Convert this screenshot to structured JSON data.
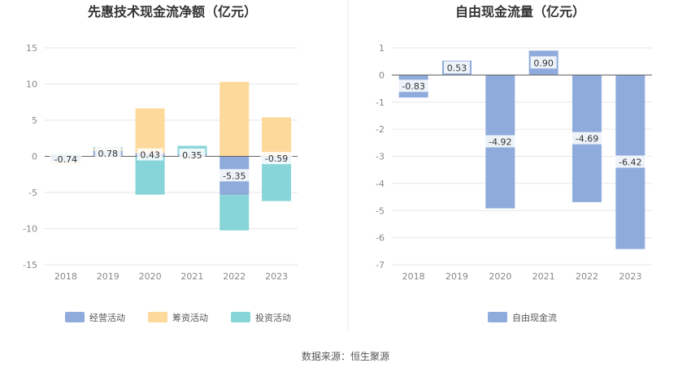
{
  "source_text": "数据来源：恒生聚源",
  "chart_data": [
    {
      "type": "bar",
      "stacked": true,
      "title": "先惠技术现金流净额（亿元）",
      "categories": [
        "2018",
        "2019",
        "2020",
        "2021",
        "2022",
        "2023"
      ],
      "ylim": [
        -15,
        15
      ],
      "yticks": [
        15,
        10,
        5,
        0,
        -5,
        -10,
        -15
      ],
      "grid": true,
      "legend_position": "bottom",
      "series": [
        {
          "name": "经营活动",
          "color": "#8eabdb",
          "values": [
            -0.74,
            0.78,
            0.43,
            0.35,
            -5.35,
            -0.59
          ]
        },
        {
          "name": "筹资活动",
          "color": "#fdd99b",
          "values": [
            -0.3,
            0.3,
            6.2,
            0.0,
            10.3,
            5.4
          ]
        },
        {
          "name": "投资活动",
          "color": "#88d5d9",
          "values": [
            0.3,
            0.2,
            -5.3,
            1.1,
            -4.9,
            -5.6
          ]
        }
      ],
      "data_labels": {
        "series": "经营活动",
        "text": [
          "-0.74",
          "0.78",
          "0.43",
          "0.35",
          "-5.35",
          "-0.59"
        ]
      }
    },
    {
      "type": "bar",
      "title": "自由现金流量（亿元）",
      "categories": [
        "2018",
        "2019",
        "2020",
        "2021",
        "2022",
        "2023"
      ],
      "ylim": [
        -7,
        1
      ],
      "yticks": [
        1,
        0,
        -1,
        -2,
        -3,
        -4,
        -5,
        -6,
        -7
      ],
      "grid": true,
      "legend_position": "bottom",
      "series": [
        {
          "name": "自由现金流",
          "color": "#8eabdb",
          "values": [
            -0.83,
            0.53,
            -4.92,
            0.9,
            -4.69,
            -6.42
          ]
        }
      ],
      "data_labels": {
        "series": "自由现金流",
        "text": [
          "-0.83",
          "0.53",
          "-4.92",
          "0.90",
          "-4.69",
          "-6.42"
        ]
      }
    }
  ]
}
